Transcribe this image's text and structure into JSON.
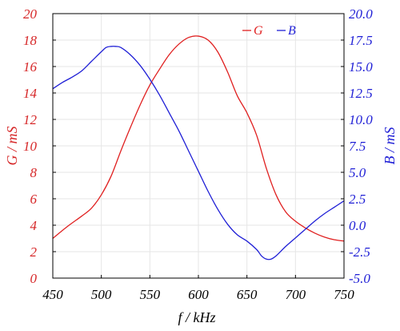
{
  "chart_data": {
    "type": "line",
    "xlabel": "f / kHz",
    "xlim": [
      450,
      750
    ],
    "x_ticks": [
      "450",
      "500",
      "550",
      "600",
      "650",
      "700",
      "750"
    ],
    "y_left": {
      "label": "G / mS",
      "lim": [
        0,
        20
      ],
      "ticks": [
        "0",
        "2",
        "4",
        "6",
        "8",
        "10",
        "12",
        "14",
        "16",
        "18",
        "20"
      ],
      "color": "#d62728"
    },
    "y_right": {
      "label": "B / mS",
      "lim": [
        -5.0,
        20.0
      ],
      "ticks": [
        "-5.0",
        "-2.5",
        "0.0",
        "2.5",
        "5.0",
        "7.5",
        "10.0",
        "12.5",
        "15.0",
        "17.5",
        "20.0"
      ],
      "color": "#1f1fd6"
    },
    "grid": true,
    "legend_position": "top-right",
    "series": [
      {
        "name": "G",
        "axis": "left",
        "color": "#e02020",
        "x": [
          450,
          465,
          480,
          490,
          500,
          510,
          520,
          530,
          540,
          550,
          560,
          570,
          580,
          590,
          600,
          610,
          620,
          630,
          640,
          650,
          660,
          670,
          680,
          690,
          700,
          710,
          720,
          730,
          740,
          750
        ],
        "y": [
          3.0,
          3.9,
          4.7,
          5.3,
          6.3,
          7.7,
          9.6,
          11.4,
          13.1,
          14.6,
          15.8,
          16.9,
          17.7,
          18.2,
          18.3,
          18.0,
          17.1,
          15.6,
          13.8,
          12.5,
          10.8,
          8.3,
          6.3,
          5.0,
          4.3,
          3.8,
          3.4,
          3.1,
          2.9,
          2.8
        ]
      },
      {
        "name": "B",
        "axis": "right",
        "color": "#1f1fd6",
        "x": [
          450,
          460,
          470,
          480,
          490,
          500,
          505,
          510,
          515,
          520,
          530,
          540,
          550,
          560,
          570,
          580,
          590,
          600,
          610,
          620,
          630,
          640,
          650,
          660,
          665,
          670,
          675,
          680,
          690,
          700,
          710,
          720,
          730,
          740,
          750
        ],
        "y": [
          12.9,
          13.5,
          14.0,
          14.6,
          15.5,
          16.4,
          16.8,
          16.9,
          16.9,
          16.8,
          16.1,
          15.1,
          13.8,
          12.3,
          10.6,
          8.9,
          7.0,
          5.1,
          3.2,
          1.5,
          0.1,
          -0.9,
          -1.5,
          -2.3,
          -2.9,
          -3.2,
          -3.2,
          -2.9,
          -2.0,
          -1.2,
          -0.4,
          0.4,
          1.1,
          1.7,
          2.3
        ]
      }
    ]
  }
}
